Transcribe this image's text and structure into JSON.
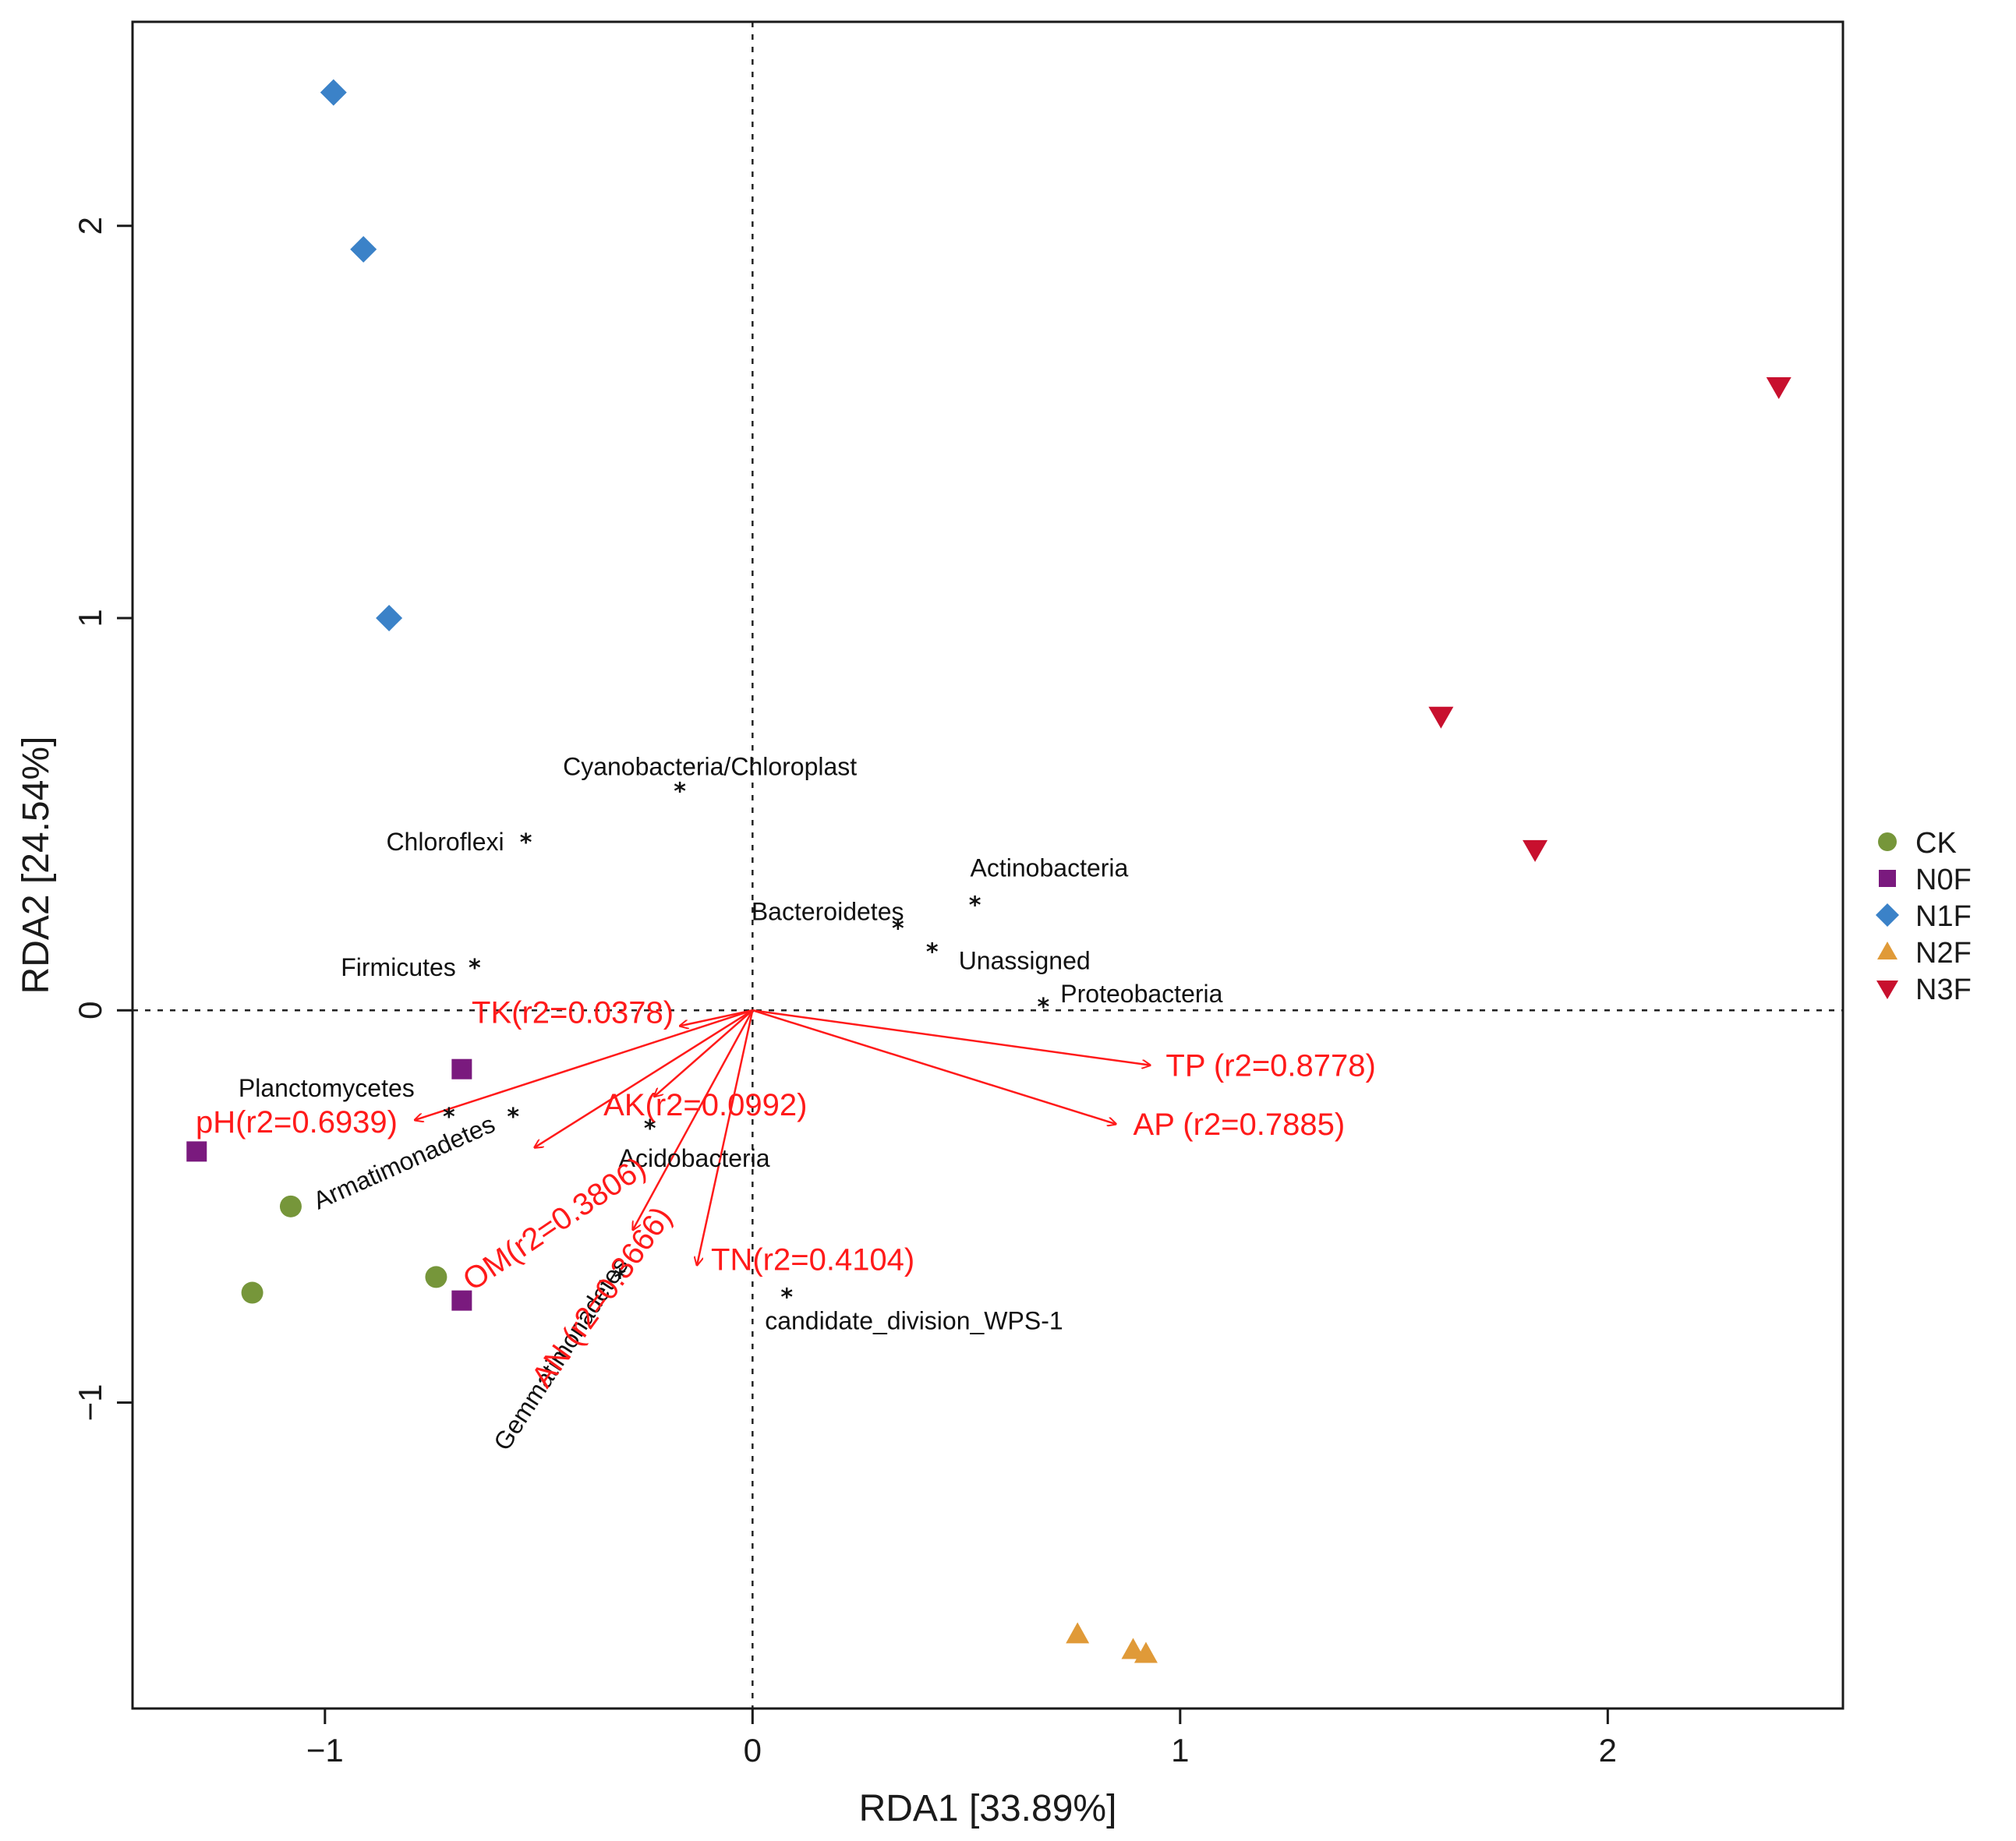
{
  "chart_data": {
    "type": "scatter",
    "title": "",
    "xlabel": "RDA1  [33.89%]",
    "ylabel": "RDA2  [24.54%]",
    "xlim": [
      -1.45,
      2.55
    ],
    "ylim": [
      -1.78,
      2.52
    ],
    "x_ticks": [
      -1,
      0,
      1,
      2
    ],
    "x_tick_labels": [
      "−1",
      "0",
      "1",
      "2"
    ],
    "y_ticks": [
      -1,
      0,
      1,
      2
    ],
    "y_tick_labels": [
      "−1",
      "0",
      "1",
      "2"
    ],
    "reference_lines": {
      "x": 0,
      "y": 0,
      "style": "dotted"
    },
    "colors": {
      "CK": "#76963a",
      "N0F": "#7a1a7e",
      "N1F": "#3b82c8",
      "N2F": "#e09a38",
      "N3F": "#c8102e",
      "env": "#ff1a1a"
    },
    "series": [
      {
        "name": "CK",
        "marker": "circle",
        "points": [
          {
            "x": -1.08,
            "y": -0.5
          },
          {
            "x": -1.17,
            "y": -0.72
          },
          {
            "x": -0.74,
            "y": -0.68
          }
        ]
      },
      {
        "name": "N0F",
        "marker": "square",
        "points": [
          {
            "x": -0.68,
            "y": -0.15
          },
          {
            "x": -1.3,
            "y": -0.36
          },
          {
            "x": -0.68,
            "y": -0.74
          }
        ]
      },
      {
        "name": "N1F",
        "marker": "diamond",
        "points": [
          {
            "x": -0.98,
            "y": 2.34
          },
          {
            "x": -0.91,
            "y": 1.94
          },
          {
            "x": -0.85,
            "y": 1.0
          }
        ]
      },
      {
        "name": "N2F",
        "marker": "triangle-up",
        "points": [
          {
            "x": 0.76,
            "y": -1.59
          },
          {
            "x": 0.89,
            "y": -1.63
          },
          {
            "x": 0.92,
            "y": -1.64
          }
        ]
      },
      {
        "name": "N3F",
        "marker": "triangle-down",
        "points": [
          {
            "x": 2.4,
            "y": 1.59
          },
          {
            "x": 1.61,
            "y": 0.75
          },
          {
            "x": 1.83,
            "y": 0.41
          }
        ]
      }
    ],
    "taxa": [
      {
        "label": "Cyanobacteria/Chloroplast",
        "x": -0.17,
        "y": 0.56
      },
      {
        "label": "Chloroflexi",
        "x": -0.53,
        "y": 0.43
      },
      {
        "label": "Firmicutes",
        "x": -0.65,
        "y": 0.11
      },
      {
        "label": "Actinobacteria",
        "x": 0.52,
        "y": 0.27
      },
      {
        "label": "Bacteroidetes",
        "x": 0.34,
        "y": 0.21
      },
      {
        "label": "Unassigned",
        "x": 0.42,
        "y": 0.15
      },
      {
        "label": "Proteobacteria",
        "x": 0.68,
        "y": 0.01
      },
      {
        "label": "Planctomycetes",
        "x": -0.71,
        "y": -0.27
      },
      {
        "label": "Armatimonadetes",
        "x": -0.56,
        "y": -0.27
      },
      {
        "label": "Acidobacteria",
        "x": -0.24,
        "y": -0.3
      },
      {
        "label": "Gemmatimonadetes",
        "x": -0.31,
        "y": -0.68
      },
      {
        "label": "candidate_division_WPS-1",
        "x": 0.08,
        "y": -0.73
      }
    ],
    "env_vectors": [
      {
        "label": "TK(r2=0.0378)",
        "x": -0.17,
        "y": -0.04
      },
      {
        "label": "pH(r2=0.6939)",
        "x": -0.79,
        "y": -0.28
      },
      {
        "label": "AK(r2=0.0992)",
        "x": -0.23,
        "y": -0.22
      },
      {
        "label": "OM(r2=0.3806)",
        "x": -0.51,
        "y": -0.35
      },
      {
        "label": "AN (r2=0.3666)",
        "x": -0.28,
        "y": -0.56
      },
      {
        "label": "TN(r2=0.4104)",
        "x": -0.13,
        "y": -0.65
      },
      {
        "label": "TP (r2=0.8778)",
        "x": 0.93,
        "y": -0.14
      },
      {
        "label": "AP (r2=0.7885)",
        "x": 0.85,
        "y": -0.29
      }
    ],
    "legend": {
      "position": "right",
      "entries": [
        "CK",
        "N0F",
        "N1F",
        "N2F",
        "N3F"
      ]
    }
  }
}
